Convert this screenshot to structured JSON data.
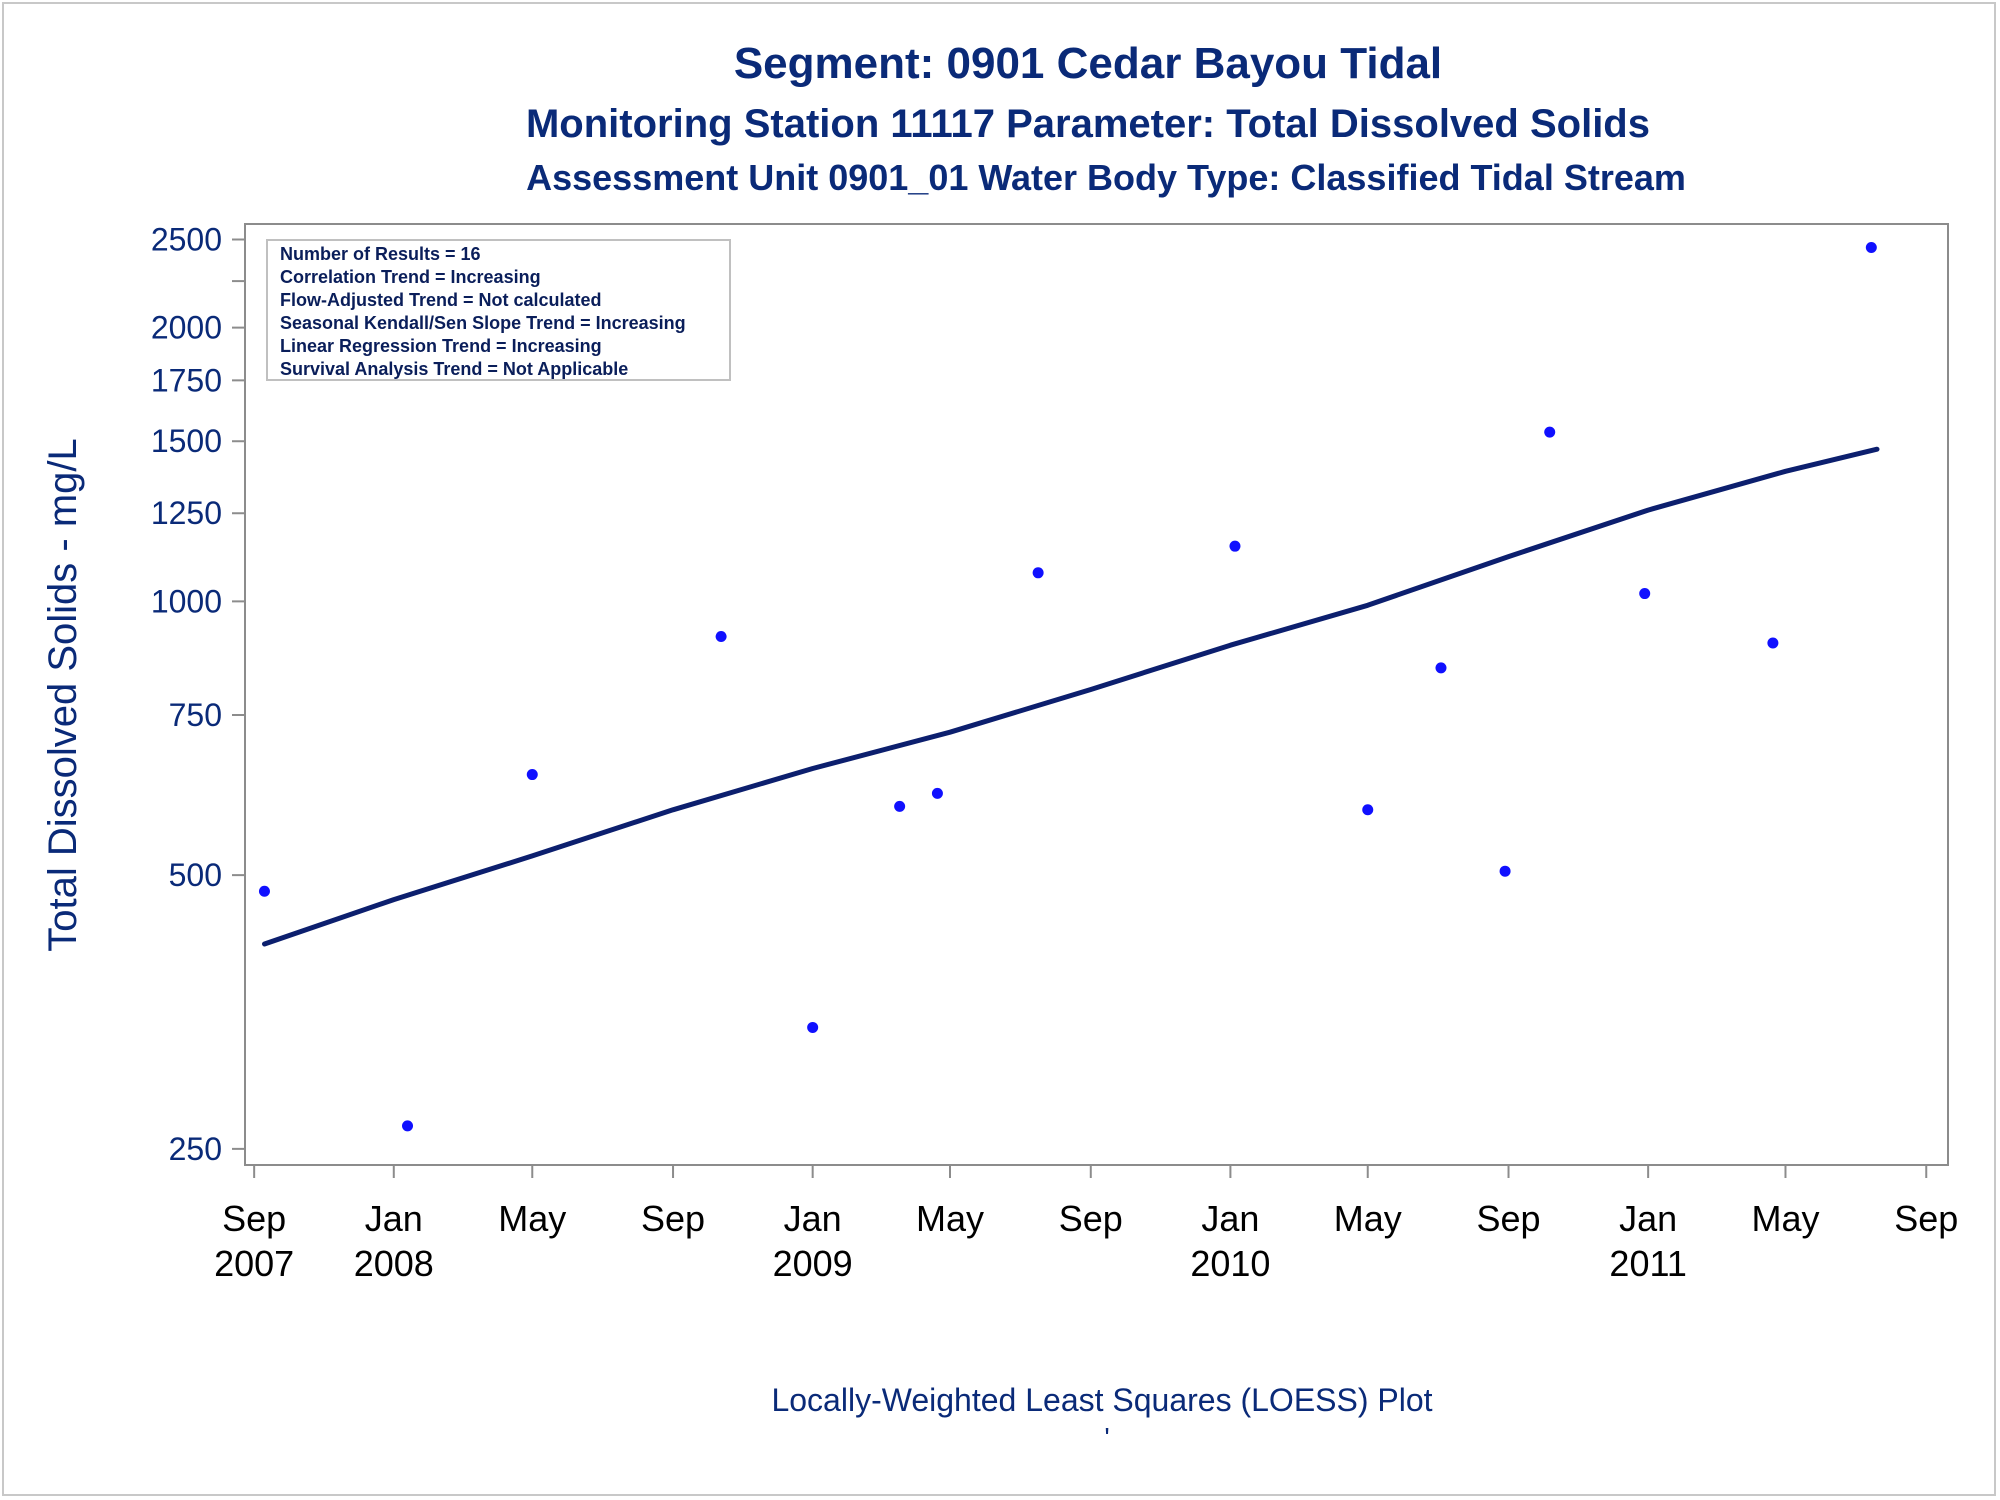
{
  "chart_data": {
    "type": "scatter",
    "titles": [
      "Segment: 0901  Cedar Bayou Tidal",
      "Monitoring Station 11117 Parameter: Total Dissolved Solids",
      "Assessment Unit 0901_01   Water Body Type: Classified Tidal Stream"
    ],
    "ylabel": "Total Dissolved Solids - mg/L",
    "footnote": "Locally-Weighted Least Squares (LOESS) Plot",
    "footnote_mark": "'",
    "yscale": "log",
    "ylim": [
      240,
      2600
    ],
    "yticks": [
      250,
      500,
      750,
      1000,
      1250,
      1500,
      1750,
      2000,
      2500
    ],
    "ytick_labels": [
      "250",
      "500",
      "750",
      "1000",
      "1250",
      "1500",
      "1750",
      "2000",
      "2500"
    ],
    "ytick_minor": [
      2250
    ],
    "xlim": [
      "2007-08-24",
      "2011-09-20"
    ],
    "xticks": [
      {
        "date": "2007-09-01",
        "month": "Sep",
        "year": "2007"
      },
      {
        "date": "2008-01-01",
        "month": "Jan",
        "year": "2008"
      },
      {
        "date": "2008-05-01",
        "month": "May",
        "year": ""
      },
      {
        "date": "2008-09-01",
        "month": "Sep",
        "year": ""
      },
      {
        "date": "2009-01-01",
        "month": "Jan",
        "year": "2009"
      },
      {
        "date": "2009-05-01",
        "month": "May",
        "year": ""
      },
      {
        "date": "2009-09-01",
        "month": "Sep",
        "year": ""
      },
      {
        "date": "2010-01-01",
        "month": "Jan",
        "year": "2010"
      },
      {
        "date": "2010-05-01",
        "month": "May",
        "year": ""
      },
      {
        "date": "2010-09-01",
        "month": "Sep",
        "year": ""
      },
      {
        "date": "2011-01-01",
        "month": "Jan",
        "year": "2011"
      },
      {
        "date": "2011-05-01",
        "month": "May",
        "year": ""
      },
      {
        "date": "2011-09-01",
        "month": "Sep",
        "year": ""
      }
    ],
    "legend": {
      "placement": "top-left",
      "lines": [
        "Number of Results = 16",
        "Correlation Trend = Increasing",
        "Flow-Adjusted Trend = Not calculated",
        "Seasonal Kendall/Sen Slope Trend = Increasing",
        "Linear Regression Trend = Increasing",
        "Survival Analysis Trend = Not Applicable"
      ]
    },
    "points": [
      {
        "x": "2007-09-10",
        "y": 480
      },
      {
        "x": "2008-01-13",
        "y": 265
      },
      {
        "x": "2008-05-01",
        "y": 645
      },
      {
        "x": "2008-10-13",
        "y": 915
      },
      {
        "x": "2009-01-01",
        "y": 340
      },
      {
        "x": "2009-03-18",
        "y": 595
      },
      {
        "x": "2009-04-20",
        "y": 615
      },
      {
        "x": "2009-07-17",
        "y": 1075
      },
      {
        "x": "2010-01-05",
        "y": 1150
      },
      {
        "x": "2010-05-01",
        "y": 590
      },
      {
        "x": "2010-07-04",
        "y": 845
      },
      {
        "x": "2010-08-29",
        "y": 505
      },
      {
        "x": "2010-10-07",
        "y": 1535
      },
      {
        "x": "2010-12-29",
        "y": 1020
      },
      {
        "x": "2011-04-20",
        "y": 900
      },
      {
        "x": "2011-07-15",
        "y": 2450
      }
    ],
    "loess": [
      {
        "x": "2007-09-10",
        "y": 420
      },
      {
        "x": "2008-01-01",
        "y": 470
      },
      {
        "x": "2008-05-01",
        "y": 525
      },
      {
        "x": "2008-09-01",
        "y": 590
      },
      {
        "x": "2009-01-01",
        "y": 655
      },
      {
        "x": "2009-05-01",
        "y": 718
      },
      {
        "x": "2009-09-01",
        "y": 800
      },
      {
        "x": "2010-01-01",
        "y": 895
      },
      {
        "x": "2010-05-01",
        "y": 990
      },
      {
        "x": "2010-09-01",
        "y": 1120
      },
      {
        "x": "2011-01-01",
        "y": 1260
      },
      {
        "x": "2011-05-01",
        "y": 1390
      },
      {
        "x": "2011-07-20",
        "y": 1470
      }
    ],
    "colors": {
      "text": "#0a2a78",
      "points": "#1010ff",
      "line": "#0c1f6e",
      "axis": "#8c8c8c"
    },
    "grid": false
  }
}
